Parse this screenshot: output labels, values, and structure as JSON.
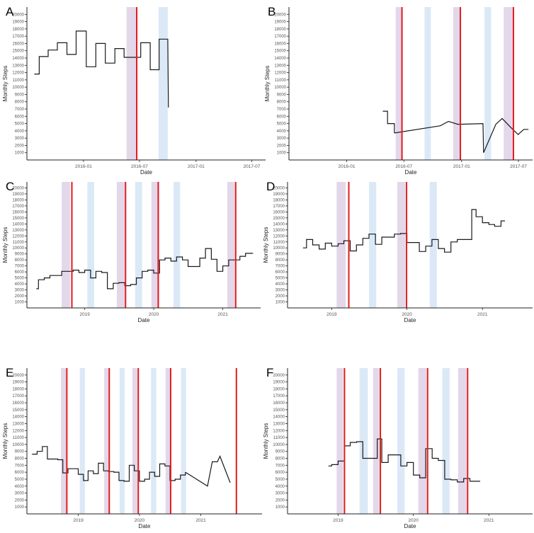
{
  "colors": {
    "line": "#1a1a1a",
    "event_line": "#e41a1c",
    "purple_band": "#e3d7ea",
    "blue_band": "#dbe9f7",
    "axis": "#222222",
    "tick_text": "#555555"
  },
  "chart_data": [
    {
      "panel": "A",
      "type": "line",
      "xlabel": "Date",
      "ylabel": "Monthly Steps",
      "x_range": [
        "2015-07-01",
        "2017-08-15"
      ],
      "ylim": [
        0,
        21000
      ],
      "y_ticks": [
        1000,
        2000,
        3000,
        4000,
        5000,
        6000,
        7000,
        8000,
        9000,
        10000,
        11000,
        12000,
        13000,
        14000,
        15000,
        16000,
        17000,
        18000,
        19000,
        20000
      ],
      "x_ticks": [
        {
          "date": "2016-01-01",
          "label": "2016-01"
        },
        {
          "date": "2016-07-01",
          "label": "2016-07"
        },
        {
          "date": "2017-01-01",
          "label": "2017-01"
        },
        {
          "date": "2017-07-01",
          "label": "2017-07"
        }
      ],
      "purple_bands": [
        [
          "2016-05-20",
          "2016-06-22"
        ]
      ],
      "blue_bands": [
        [
          "2016-09-01",
          "2016-10-01"
        ]
      ],
      "red_lines": [
        "2016-06-22"
      ],
      "steps": [
        [
          "2015-07-25",
          11800
        ],
        [
          "2015-08-10",
          14200
        ],
        [
          "2015-09-08",
          15100
        ],
        [
          "2015-10-08",
          16100
        ],
        [
          "2015-11-08",
          14500
        ],
        [
          "2015-12-08",
          17700
        ],
        [
          "2016-01-10",
          12800
        ],
        [
          "2016-02-10",
          16000
        ],
        [
          "2016-03-12",
          13300
        ],
        [
          "2016-04-12",
          15300
        ],
        [
          "2016-05-12",
          14100
        ],
        [
          "2016-06-12",
          14100
        ],
        [
          "2016-07-05",
          16100
        ],
        [
          "2016-08-05",
          12400
        ],
        [
          "2016-09-03",
          16600
        ],
        [
          "2016-10-01",
          16600
        ]
      ],
      "tail": [
        [
          "2016-10-03",
          7200
        ]
      ]
    },
    {
      "panel": "B",
      "type": "line",
      "xlabel": "Date",
      "ylabel": "Monthly Steps",
      "x_range": [
        "2015-07-01",
        "2017-08-15"
      ],
      "ylim": [
        0,
        21000
      ],
      "y_ticks": [
        1000,
        2000,
        3000,
        4000,
        5000,
        6000,
        7000,
        8000,
        9000,
        10000,
        11000,
        12000,
        13000,
        14000,
        15000,
        16000,
        17000,
        18000,
        19000,
        20000
      ],
      "x_ticks": [
        {
          "date": "2016-01-01",
          "label": "2016-01"
        },
        {
          "date": "2016-07-01",
          "label": "2016-07"
        },
        {
          "date": "2017-01-01",
          "label": "2017-01"
        },
        {
          "date": "2017-07-01",
          "label": "2017-07"
        }
      ],
      "purple_bands": [
        [
          "2016-06-05",
          "2016-06-25"
        ],
        [
          "2016-12-05",
          "2016-12-28"
        ],
        [
          "2017-05-15",
          "2017-06-15"
        ]
      ],
      "blue_bands": [
        [
          "2016-09-05",
          "2016-09-25"
        ],
        [
          "2017-03-15",
          "2017-04-05"
        ]
      ],
      "red_lines": [
        "2016-06-25",
        "2016-12-28",
        "2017-06-15"
      ],
      "steps": [
        [
          "2016-04-25",
          6700
        ],
        [
          "2016-05-10",
          5000
        ],
        [
          "2016-06-01",
          3700
        ]
      ],
      "segments": [
        [
          [
            "2016-06-01",
            3700
          ],
          [
            "2016-10-25",
            4700
          ],
          [
            "2016-11-20",
            5300
          ],
          [
            "2016-12-20",
            4900
          ],
          [
            "2017-03-10",
            5000
          ],
          [
            "2017-03-12",
            1000
          ],
          [
            "2017-04-20",
            4900
          ],
          [
            "2017-05-10",
            5700
          ],
          [
            "2017-06-08",
            4400
          ],
          [
            "2017-06-30",
            3500
          ],
          [
            "2017-07-18",
            4200
          ],
          [
            "2017-08-02",
            4200
          ]
        ]
      ]
    },
    {
      "panel": "C",
      "type": "line",
      "xlabel": "Date",
      "ylabel": "Monthly Steps",
      "x_range": [
        "2018-03-01",
        "2021-07-20"
      ],
      "ylim": [
        0,
        21000
      ],
      "y_ticks": [
        1000,
        2000,
        3000,
        4000,
        5000,
        6000,
        7000,
        8000,
        9000,
        10000,
        11000,
        12000,
        13000,
        14000,
        15000,
        16000,
        17000,
        18000,
        19000,
        20000
      ],
      "x_ticks": [
        {
          "date": "2019-01-01",
          "label": "2019"
        },
        {
          "date": "2020-01-01",
          "label": "2020"
        },
        {
          "date": "2021-01-01",
          "label": "2021"
        }
      ],
      "purple_bands": [
        [
          "2018-09-01",
          "2018-10-15"
        ],
        [
          "2019-06-20",
          "2019-08-01"
        ],
        [
          "2019-12-20",
          "2020-01-30"
        ],
        [
          "2021-01-25",
          "2021-03-05"
        ]
      ],
      "blue_bands": [
        [
          "2019-01-15",
          "2019-02-20"
        ],
        [
          "2019-09-25",
          "2019-11-01"
        ],
        [
          "2020-04-15",
          "2020-05-20"
        ]
      ],
      "red_lines": [
        "2018-10-25",
        "2019-08-05",
        "2020-01-25",
        "2021-03-10"
      ],
      "steps": [
        [
          "2018-04-20",
          3200
        ],
        [
          "2018-05-01",
          4700
        ],
        [
          "2018-06-01",
          5000
        ],
        [
          "2018-07-01",
          5400
        ],
        [
          "2018-08-01",
          5400
        ],
        [
          "2018-09-01",
          6100
        ],
        [
          "2018-10-01",
          6100
        ],
        [
          "2018-11-01",
          6300
        ],
        [
          "2018-12-01",
          5900
        ],
        [
          "2019-01-01",
          6300
        ],
        [
          "2019-02-01",
          5000
        ],
        [
          "2019-03-01",
          6100
        ],
        [
          "2019-04-01",
          5900
        ],
        [
          "2019-05-01",
          3200
        ],
        [
          "2019-06-01",
          4100
        ],
        [
          "2019-07-01",
          4200
        ],
        [
          "2019-08-01",
          3700
        ],
        [
          "2019-09-01",
          3900
        ],
        [
          "2019-10-01",
          5000
        ],
        [
          "2019-11-01",
          6100
        ],
        [
          "2019-12-01",
          6300
        ],
        [
          "2020-01-01",
          5800
        ],
        [
          "2020-02-01",
          8000
        ],
        [
          "2020-03-01",
          8300
        ],
        [
          "2020-04-01",
          7800
        ],
        [
          "2020-05-01",
          8500
        ],
        [
          "2020-06-01",
          8000
        ],
        [
          "2020-07-01",
          6900
        ],
        [
          "2020-09-01",
          8300
        ],
        [
          "2020-10-01",
          9900
        ],
        [
          "2020-11-01",
          8100
        ],
        [
          "2020-12-01",
          6100
        ],
        [
          "2021-01-01",
          7000
        ],
        [
          "2021-02-01",
          8000
        ],
        [
          "2021-04-01",
          8600
        ],
        [
          "2021-05-01",
          9100
        ],
        [
          "2021-06-10",
          9100
        ]
      ]
    },
    {
      "panel": "D",
      "type": "line",
      "xlabel": "Date",
      "ylabel": "Monthly Steps",
      "x_range": [
        "2018-06-01",
        "2021-09-01"
      ],
      "ylim": [
        0,
        21000
      ],
      "y_ticks": [
        1000,
        2000,
        3000,
        4000,
        5000,
        6000,
        7000,
        8000,
        9000,
        10000,
        11000,
        12000,
        13000,
        14000,
        15000,
        16000,
        17000,
        18000,
        19000,
        20000
      ],
      "x_ticks": [
        {
          "date": "2019-01-01",
          "label": "2019"
        },
        {
          "date": "2020-01-01",
          "label": "2020"
        },
        {
          "date": "2021-01-01",
          "label": "2021"
        }
      ],
      "purple_bands": [
        [
          "2019-01-25",
          "2019-03-10"
        ],
        [
          "2019-11-15",
          "2019-12-25"
        ]
      ],
      "blue_bands": [
        [
          "2019-07-01",
          "2019-08-05"
        ],
        [
          "2020-04-20",
          "2020-05-25"
        ]
      ],
      "red_lines": [
        "2019-03-25",
        "2019-12-30"
      ],
      "steps": [
        [
          "2018-08-15",
          10000
        ],
        [
          "2018-09-01",
          11400
        ],
        [
          "2018-10-01",
          10500
        ],
        [
          "2018-11-01",
          9800
        ],
        [
          "2018-12-01",
          10800
        ],
        [
          "2019-01-01",
          10300
        ],
        [
          "2019-02-01",
          10700
        ],
        [
          "2019-03-01",
          11200
        ],
        [
          "2019-04-01",
          9500
        ],
        [
          "2019-05-01",
          10500
        ],
        [
          "2019-06-01",
          11600
        ],
        [
          "2019-07-01",
          12300
        ],
        [
          "2019-08-01",
          10600
        ],
        [
          "2019-09-01",
          11800
        ],
        [
          "2019-10-01",
          11800
        ],
        [
          "2019-11-01",
          12300
        ],
        [
          "2019-12-01",
          12400
        ],
        [
          "2020-01-01",
          10900
        ],
        [
          "2020-03-01",
          9400
        ],
        [
          "2020-04-01",
          10300
        ],
        [
          "2020-05-01",
          11400
        ],
        [
          "2020-06-01",
          9900
        ],
        [
          "2020-07-01",
          9300
        ],
        [
          "2020-08-01",
          11000
        ],
        [
          "2020-09-01",
          11400
        ],
        [
          "2020-11-10",
          16400
        ],
        [
          "2020-12-01",
          15200
        ],
        [
          "2021-01-01",
          14200
        ],
        [
          "2021-02-01",
          13900
        ],
        [
          "2021-03-01",
          13600
        ],
        [
          "2021-04-01",
          14500
        ],
        [
          "2021-04-20",
          14500
        ]
      ]
    },
    {
      "panel": "E",
      "type": "line",
      "xlabel": "Date",
      "ylabel": "Monthly Steps",
      "x_range": [
        "2018-03-01",
        "2022-01-01"
      ],
      "ylim": [
        0,
        21000
      ],
      "y_ticks": [
        1000,
        2000,
        3000,
        4000,
        5000,
        6000,
        7000,
        8000,
        9000,
        10000,
        11000,
        12000,
        13000,
        14000,
        15000,
        16000,
        17000,
        18000,
        19000,
        20000
      ],
      "x_ticks": [
        {
          "date": "2019-01-01",
          "label": "2019"
        },
        {
          "date": "2020-01-01",
          "label": "2020"
        },
        {
          "date": "2021-01-01",
          "label": "2021"
        }
      ],
      "purple_bands": [
        [
          "2018-09-20",
          "2018-10-25"
        ],
        [
          "2019-06-05",
          "2019-07-05"
        ],
        [
          "2019-11-20",
          "2019-12-20"
        ],
        [
          "2020-06-05",
          "2020-07-05"
        ]
      ],
      "blue_bands": [
        [
          "2019-01-10",
          "2019-02-10"
        ],
        [
          "2019-09-05",
          "2019-10-05"
        ],
        [
          "2020-03-10",
          "2020-04-10"
        ],
        [
          "2020-09-05",
          "2020-10-05"
        ]
      ],
      "red_lines": [
        "2018-10-25",
        "2019-07-05",
        "2019-12-25",
        "2020-07-05",
        "2021-08-01"
      ],
      "steps": [
        [
          "2018-04-01",
          8600
        ],
        [
          "2018-05-01",
          9000
        ],
        [
          "2018-06-01",
          9700
        ],
        [
          "2018-07-01",
          7900
        ],
        [
          "2018-08-01",
          7900
        ],
        [
          "2018-09-01",
          7800
        ],
        [
          "2018-10-01",
          5900
        ],
        [
          "2018-11-01",
          6500
        ],
        [
          "2018-12-01",
          6500
        ],
        [
          "2019-01-01",
          5700
        ],
        [
          "2019-02-01",
          4800
        ],
        [
          "2019-03-01",
          6200
        ],
        [
          "2019-04-01",
          5800
        ],
        [
          "2019-05-01",
          7300
        ],
        [
          "2019-06-01",
          6200
        ],
        [
          "2019-07-01",
          6100
        ],
        [
          "2019-08-01",
          6000
        ],
        [
          "2019-09-01",
          4800
        ],
        [
          "2019-10-01",
          4700
        ],
        [
          "2019-11-01",
          7000
        ],
        [
          "2019-12-01",
          6200
        ],
        [
          "2020-01-01",
          4700
        ],
        [
          "2020-02-01",
          5000
        ],
        [
          "2020-03-01",
          6000
        ],
        [
          "2020-04-01",
          5400
        ],
        [
          "2020-05-01",
          7200
        ],
        [
          "2020-06-01",
          6900
        ],
        [
          "2020-07-01",
          4800
        ],
        [
          "2020-08-01",
          5000
        ],
        [
          "2020-09-01",
          5600
        ],
        [
          "2020-10-01",
          6000
        ]
      ],
      "segments": [
        [
          [
            "2020-10-01",
            6000
          ],
          [
            "2021-02-10",
            4000
          ],
          [
            "2021-03-10",
            7500
          ],
          [
            "2021-04-10",
            7500
          ],
          [
            "2021-04-25",
            8300
          ],
          [
            "2021-06-25",
            4500
          ]
        ]
      ]
    },
    {
      "panel": "F",
      "type": "line",
      "xlabel": "Date",
      "ylabel": "Monthly Steps",
      "x_range": [
        "2018-05-01",
        "2021-08-01"
      ],
      "ylim": [
        0,
        21000
      ],
      "y_ticks": [
        1000,
        2000,
        3000,
        4000,
        5000,
        6000,
        7000,
        8000,
        9000,
        10000,
        11000,
        12000,
        13000,
        14000,
        15000,
        16000,
        17000,
        18000,
        19000,
        20000
      ],
      "x_ticks": [
        {
          "date": "2019-01-01",
          "label": "2019"
        },
        {
          "date": "2020-01-01",
          "label": "2020"
        },
        {
          "date": "2021-01-01",
          "label": "2021"
        }
      ],
      "purple_bands": [
        [
          "2018-12-25",
          "2019-01-25"
        ],
        [
          "2019-06-20",
          "2019-07-20"
        ],
        [
          "2020-01-25",
          "2020-03-05"
        ],
        [
          "2020-08-05",
          "2020-09-15"
        ]
      ],
      "blue_bands": [
        [
          "2019-04-15",
          "2019-05-25"
        ],
        [
          "2019-10-15",
          "2019-11-20"
        ],
        [
          "2020-05-20",
          "2020-06-25"
        ]
      ],
      "red_lines": [
        "2019-02-01",
        "2019-07-25",
        "2020-03-10",
        "2020-09-20"
      ],
      "steps": [
        [
          "2018-11-15",
          6900
        ],
        [
          "2018-12-01",
          7100
        ],
        [
          "2019-01-01",
          7600
        ],
        [
          "2019-02-01",
          9800
        ],
        [
          "2019-03-01",
          10300
        ],
        [
          "2019-04-01",
          10400
        ],
        [
          "2019-05-01",
          8000
        ],
        [
          "2019-06-01",
          8000
        ],
        [
          "2019-07-01",
          8000
        ],
        [
          "2019-07-10",
          10800
        ],
        [
          "2019-08-01",
          7400
        ],
        [
          "2019-09-01",
          8500
        ],
        [
          "2019-10-01",
          8500
        ],
        [
          "2019-11-01",
          6900
        ],
        [
          "2019-12-01",
          7400
        ],
        [
          "2020-01-01",
          5600
        ],
        [
          "2020-02-01",
          5200
        ],
        [
          "2020-03-01",
          9400
        ],
        [
          "2020-04-01",
          8000
        ],
        [
          "2020-05-01",
          7700
        ],
        [
          "2020-06-01",
          5000
        ],
        [
          "2020-07-01",
          4900
        ],
        [
          "2020-08-01",
          4600
        ],
        [
          "2020-09-01",
          5100
        ],
        [
          "2020-10-01",
          4700
        ],
        [
          "2020-11-01",
          4700
        ],
        [
          "2020-11-20",
          4700
        ]
      ]
    }
  ]
}
